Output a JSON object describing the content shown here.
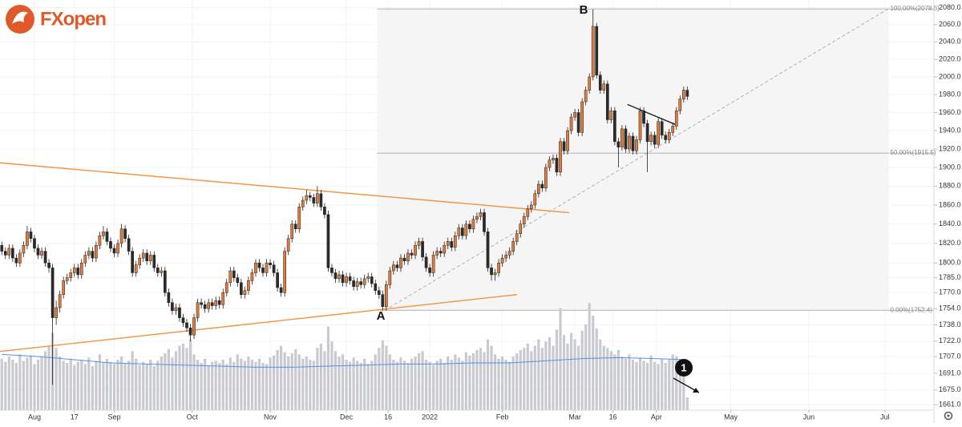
{
  "chart_data": {
    "type": "candlestick",
    "logo": "FXopen",
    "log_scale": true,
    "grid": true,
    "up_color": "#e07b39",
    "down_color": "#2b2b2b",
    "volume_color": "#c9cacf",
    "volume_ma_color": "#5b8def",
    "xlim": [
      -0.5,
      257
    ],
    "ylim": [
      1656,
      2089
    ],
    "volume_lim": [
      0,
      100
    ],
    "xticks": [
      {
        "value": 9,
        "label": "Aug"
      },
      {
        "value": 20,
        "label": "17"
      },
      {
        "value": 31,
        "label": "Sep"
      },
      {
        "value": 52.5,
        "label": "Oct"
      },
      {
        "value": 74,
        "label": "Nov"
      },
      {
        "value": 95,
        "label": "Dec"
      },
      {
        "value": 106.5,
        "label": "16"
      },
      {
        "value": 118,
        "label": "2022"
      },
      {
        "value": 138,
        "label": "Feb"
      },
      {
        "value": 158,
        "label": "Mar"
      },
      {
        "value": 168.5,
        "label": "16"
      },
      {
        "value": 180.5,
        "label": "Apr"
      },
      {
        "value": 201,
        "label": "May"
      },
      {
        "value": 222.5,
        "label": "Jun"
      },
      {
        "value": 243.5,
        "label": "Jul"
      }
    ],
    "yticks": [
      {
        "value": 1661,
        "label": "1661.0"
      },
      {
        "value": 1675,
        "label": "1675.0"
      },
      {
        "value": 1691,
        "label": "1691.0"
      },
      {
        "value": 1707,
        "label": "1707.0"
      },
      {
        "value": 1722,
        "label": "1722.0"
      },
      {
        "value": 1738,
        "label": "1738.0"
      },
      {
        "value": 1754,
        "label": "1754.0"
      },
      {
        "value": 1770,
        "label": "1770.0"
      },
      {
        "value": 1785,
        "label": "1785.0"
      },
      {
        "value": 1800,
        "label": "1800.0"
      },
      {
        "value": 1820,
        "label": "1820.0"
      },
      {
        "value": 1840,
        "label": "1840.0"
      },
      {
        "value": 1860,
        "label": "1860.0"
      },
      {
        "value": 1880,
        "label": "1880.0"
      },
      {
        "value": 1900,
        "label": "1900.0"
      },
      {
        "value": 1920,
        "label": "1920.0"
      },
      {
        "value": 1940,
        "label": "1940.0"
      },
      {
        "value": 1960,
        "label": "1960.0"
      },
      {
        "value": 1980,
        "label": "1980.0"
      },
      {
        "value": 2000,
        "label": "2000.0"
      },
      {
        "value": 2020,
        "label": "2020.0"
      },
      {
        "value": 2040,
        "label": "2040.0"
      },
      {
        "value": 2060,
        "label": "2060.0"
      },
      {
        "value": 2080,
        "label": "2080.0"
      }
    ],
    "x": [
      0,
      1,
      2,
      3,
      4,
      5,
      6,
      7,
      8,
      9,
      10,
      11,
      12,
      13,
      14,
      15,
      16,
      17,
      18,
      19,
      20,
      21,
      22,
      23,
      24,
      25,
      26,
      27,
      28,
      29,
      30,
      31,
      32,
      33,
      34,
      35,
      36,
      37,
      38,
      39,
      40,
      41,
      42,
      43,
      44,
      45,
      46,
      47,
      48,
      49,
      50,
      51,
      52,
      53,
      54,
      55,
      56,
      57,
      58,
      59,
      60,
      61,
      62,
      63,
      64,
      65,
      66,
      67,
      68,
      69,
      70,
      71,
      72,
      73,
      74,
      75,
      76,
      77,
      78,
      79,
      80,
      81,
      82,
      83,
      84,
      85,
      86,
      87,
      88,
      89,
      90,
      91,
      92,
      93,
      94,
      95,
      96,
      97,
      98,
      99,
      100,
      101,
      102,
      103,
      104,
      105,
      106,
      107,
      108,
      109,
      110,
      111,
      112,
      113,
      114,
      115,
      116,
      117,
      118,
      119,
      120,
      121,
      122,
      123,
      124,
      125,
      126,
      127,
      128,
      129,
      130,
      131,
      132,
      133,
      134,
      135,
      136,
      137,
      138,
      139,
      140,
      141,
      142,
      143,
      144,
      145,
      146,
      147,
      148,
      149,
      150,
      151,
      152,
      153,
      154,
      155,
      156,
      157,
      158,
      159,
      160,
      161,
      162,
      163,
      164,
      165,
      166,
      167,
      168,
      169,
      170,
      171,
      172,
      173,
      174,
      175,
      176,
      177,
      178,
      179,
      180,
      181,
      182,
      183,
      184,
      185,
      186,
      187,
      188,
      189
    ],
    "open": [
      1818,
      1812,
      1808,
      1815,
      1805,
      1800,
      1810,
      1818,
      1832,
      1825,
      1815,
      1808,
      1812,
      1800,
      1795,
      1745,
      1755,
      1768,
      1782,
      1785,
      1790,
      1795,
      1788,
      1800,
      1808,
      1812,
      1805,
      1818,
      1828,
      1832,
      1822,
      1815,
      1810,
      1820,
      1835,
      1825,
      1812,
      1790,
      1798,
      1805,
      1810,
      1802,
      1808,
      1795,
      1790,
      1792,
      1770,
      1760,
      1752,
      1755,
      1745,
      1740,
      1735,
      1728,
      1745,
      1760,
      1758,
      1754,
      1760,
      1757,
      1762,
      1758,
      1770,
      1780,
      1792,
      1785,
      1780,
      1768,
      1772,
      1782,
      1790,
      1800,
      1795,
      1790,
      1800,
      1798,
      1790,
      1775,
      1770,
      1812,
      1825,
      1840,
      1835,
      1858,
      1865,
      1870,
      1868,
      1862,
      1872,
      1858,
      1850,
      1795,
      1790,
      1784,
      1788,
      1780,
      1786,
      1782,
      1776,
      1781,
      1778,
      1784,
      1786,
      1779,
      1772,
      1768,
      1756,
      1778,
      1792,
      1798,
      1795,
      1805,
      1802,
      1810,
      1808,
      1818,
      1822,
      1806,
      1795,
      1790,
      1808,
      1812,
      1810,
      1818,
      1822,
      1816,
      1828,
      1836,
      1828,
      1840,
      1835,
      1845,
      1848,
      1852,
      1832,
      1795,
      1788,
      1790,
      1800,
      1805,
      1808,
      1812,
      1822,
      1830,
      1840,
      1848,
      1856,
      1860,
      1872,
      1882,
      1878,
      1900,
      1908,
      1910,
      1895,
      1928,
      1918,
      1940,
      1955,
      1960,
      1938,
      1972,
      1985,
      2000,
      2058,
      2002,
      1985,
      1992,
      1952,
      1962,
      1928,
      1922,
      1942,
      1920,
      1934,
      1918,
      1930,
      1962,
      1948,
      1928,
      1935,
      1925,
      1950,
      1935,
      1930,
      1938,
      1945,
      1962,
      1975,
      1985
    ],
    "high": [
      1822,
      1816,
      1819,
      1819,
      1809,
      1814,
      1822,
      1838,
      1836,
      1829,
      1819,
      1816,
      1816,
      1804,
      1799,
      1762,
      1772,
      1786,
      1789,
      1794,
      1799,
      1799,
      1804,
      1812,
      1816,
      1816,
      1822,
      1832,
      1838,
      1836,
      1826,
      1819,
      1824,
      1840,
      1839,
      1829,
      1816,
      1802,
      1809,
      1814,
      1814,
      1812,
      1812,
      1799,
      1796,
      1796,
      1774,
      1764,
      1759,
      1759,
      1749,
      1744,
      1739,
      1749,
      1764,
      1764,
      1762,
      1764,
      1764,
      1766,
      1766,
      1774,
      1784,
      1796,
      1796,
      1789,
      1784,
      1776,
      1786,
      1794,
      1804,
      1804,
      1799,
      1804,
      1804,
      1802,
      1794,
      1779,
      1816,
      1829,
      1844,
      1844,
      1862,
      1869,
      1876,
      1874,
      1872,
      1880,
      1876,
      1862,
      1854,
      1799,
      1794,
      1792,
      1792,
      1790,
      1790,
      1786,
      1785,
      1785,
      1788,
      1790,
      1790,
      1783,
      1776,
      1772,
      1782,
      1796,
      1802,
      1802,
      1809,
      1809,
      1814,
      1814,
      1822,
      1826,
      1826,
      1810,
      1799,
      1812,
      1816,
      1816,
      1822,
      1826,
      1826,
      1832,
      1840,
      1840,
      1844,
      1844,
      1849,
      1852,
      1856,
      1856,
      1836,
      1799,
      1794,
      1804,
      1809,
      1812,
      1816,
      1826,
      1834,
      1844,
      1852,
      1860,
      1864,
      1876,
      1886,
      1886,
      1904,
      1912,
      1914,
      1914,
      1932,
      1932,
      1944,
      1959,
      1964,
      1964,
      1976,
      1989,
      2004,
      2078,
      2062,
      2006,
      1996,
      1996,
      1966,
      1966,
      1932,
      1946,
      1946,
      1938,
      1938,
      1934,
      1966,
      1966,
      1952,
      1939,
      1939,
      1954,
      1954,
      1939,
      1942,
      1949,
      1966,
      1979,
      1989,
      1989
    ],
    "low": [
      1808,
      1804,
      1804,
      1801,
      1796,
      1796,
      1806,
      1814,
      1821,
      1811,
      1804,
      1804,
      1796,
      1790,
      1680,
      1738,
      1750,
      1764,
      1778,
      1781,
      1786,
      1784,
      1784,
      1796,
      1804,
      1801,
      1801,
      1814,
      1824,
      1818,
      1811,
      1806,
      1806,
      1816,
      1821,
      1808,
      1786,
      1786,
      1794,
      1801,
      1798,
      1798,
      1791,
      1786,
      1786,
      1766,
      1756,
      1748,
      1748,
      1741,
      1736,
      1731,
      1722,
      1724,
      1741,
      1754,
      1750,
      1750,
      1753,
      1753,
      1754,
      1754,
      1766,
      1776,
      1781,
      1776,
      1764,
      1764,
      1768,
      1778,
      1786,
      1791,
      1786,
      1786,
      1794,
      1786,
      1771,
      1766,
      1766,
      1808,
      1821,
      1831,
      1831,
      1854,
      1861,
      1864,
      1858,
      1858,
      1854,
      1846,
      1791,
      1786,
      1780,
      1780,
      1776,
      1776,
      1778,
      1772,
      1772,
      1774,
      1774,
      1780,
      1775,
      1768,
      1764,
      1752,
      1752,
      1774,
      1788,
      1791,
      1791,
      1798,
      1798,
      1804,
      1804,
      1814,
      1802,
      1791,
      1786,
      1786,
      1804,
      1806,
      1806,
      1814,
      1812,
      1812,
      1824,
      1824,
      1824,
      1831,
      1831,
      1841,
      1844,
      1828,
      1791,
      1782,
      1782,
      1786,
      1796,
      1801,
      1804,
      1808,
      1818,
      1826,
      1836,
      1844,
      1852,
      1856,
      1868,
      1874,
      1874,
      1896,
      1904,
      1891,
      1891,
      1914,
      1914,
      1936,
      1951,
      1934,
      1934,
      1968,
      1981,
      1996,
      1998,
      1981,
      1981,
      1948,
      1948,
      1924,
      1900,
      1918,
      1916,
      1916,
      1914,
      1914,
      1926,
      1944,
      1895,
      1924,
      1921,
      1921,
      1931,
      1926,
      1926,
      1934,
      1941,
      1958,
      1971,
      1974
    ],
    "close": [
      1812,
      1808,
      1815,
      1805,
      1800,
      1810,
      1818,
      1832,
      1825,
      1815,
      1808,
      1812,
      1800,
      1795,
      1745,
      1755,
      1768,
      1782,
      1785,
      1790,
      1795,
      1788,
      1800,
      1808,
      1812,
      1805,
      1818,
      1828,
      1832,
      1822,
      1815,
      1810,
      1820,
      1835,
      1825,
      1812,
      1790,
      1798,
      1805,
      1810,
      1802,
      1808,
      1795,
      1790,
      1792,
      1770,
      1760,
      1752,
      1755,
      1745,
      1740,
      1735,
      1728,
      1745,
      1760,
      1758,
      1754,
      1760,
      1757,
      1762,
      1758,
      1770,
      1780,
      1792,
      1785,
      1780,
      1768,
      1772,
      1782,
      1790,
      1800,
      1795,
      1790,
      1800,
      1798,
      1790,
      1775,
      1770,
      1812,
      1825,
      1840,
      1835,
      1858,
      1865,
      1870,
      1868,
      1862,
      1872,
      1858,
      1850,
      1795,
      1790,
      1784,
      1788,
      1780,
      1786,
      1782,
      1776,
      1781,
      1778,
      1784,
      1786,
      1779,
      1772,
      1768,
      1756,
      1778,
      1792,
      1798,
      1795,
      1805,
      1802,
      1810,
      1808,
      1818,
      1822,
      1806,
      1795,
      1790,
      1808,
      1812,
      1810,
      1818,
      1822,
      1816,
      1828,
      1836,
      1828,
      1840,
      1835,
      1845,
      1848,
      1852,
      1832,
      1795,
      1788,
      1790,
      1800,
      1805,
      1808,
      1812,
      1822,
      1830,
      1840,
      1848,
      1856,
      1860,
      1872,
      1882,
      1878,
      1900,
      1908,
      1910,
      1895,
      1928,
      1918,
      1940,
      1955,
      1960,
      1938,
      1972,
      1985,
      2000,
      2058,
      2002,
      1985,
      1992,
      1952,
      1962,
      1928,
      1922,
      1942,
      1920,
      1934,
      1918,
      1930,
      1962,
      1948,
      1928,
      1935,
      1925,
      1950,
      1935,
      1930,
      1938,
      1945,
      1962,
      1975,
      1985,
      1978
    ],
    "volume": [
      48,
      45,
      50,
      47,
      44,
      52,
      46,
      49,
      51,
      43,
      47,
      50,
      55,
      60,
      72,
      58,
      50,
      46,
      44,
      48,
      42,
      45,
      47,
      43,
      49,
      41,
      46,
      52,
      44,
      48,
      45,
      43,
      47,
      50,
      44,
      46,
      55,
      48,
      42,
      45,
      43,
      47,
      41,
      46,
      50,
      53,
      57,
      49,
      55,
      60,
      62,
      58,
      66,
      52,
      47,
      44,
      48,
      42,
      45,
      46,
      44,
      47,
      43,
      49,
      45,
      52,
      48,
      46,
      50,
      47,
      45,
      48,
      44,
      43,
      49,
      51,
      56,
      60,
      54,
      50,
      53,
      57,
      52,
      48,
      50,
      47,
      46,
      58,
      62,
      55,
      78,
      64,
      55,
      50,
      52,
      47,
      45,
      49,
      46,
      44,
      48,
      43,
      46,
      52,
      58,
      65,
      60,
      52,
      47,
      45,
      49,
      46,
      44,
      48,
      50,
      53,
      55,
      47,
      45,
      42,
      46,
      48,
      44,
      50,
      47,
      52,
      49,
      46,
      54,
      51,
      53,
      56,
      58,
      54,
      66,
      60,
      52,
      48,
      50,
      47,
      45,
      50,
      53,
      56,
      58,
      62,
      55,
      60,
      66,
      58,
      64,
      68,
      60,
      75,
      95,
      70,
      62,
      72,
      66,
      60,
      74,
      80,
      100,
      88,
      76,
      66,
      60,
      58,
      55,
      52,
      56,
      50,
      48,
      52,
      47,
      45,
      49,
      46,
      44,
      51,
      45,
      43,
      48,
      44,
      47,
      52,
      50,
      45,
      40,
      12
    ],
    "volume_ma": {
      "x": [
        0,
        10,
        20,
        30,
        40,
        50,
        60,
        70,
        80,
        90,
        100,
        110,
        120,
        130,
        140,
        150,
        160,
        170,
        180,
        189
      ],
      "values": [
        52,
        50,
        47,
        44,
        43,
        42,
        41,
        40,
        40,
        41,
        42,
        43,
        43,
        44,
        44,
        46,
        48,
        49,
        48,
        47
      ]
    },
    "fib_x": [
      103.5,
      244.5
    ],
    "fib_levels": [
      {
        "value": 2078.5,
        "label": "100.00%(2078.5)"
      },
      {
        "value": 1915.5,
        "label": "50.00%(1915.5)"
      },
      {
        "value": 1752.4,
        "label": "0.00%(1752.4)"
      }
    ],
    "trendlines": [
      {
        "color": "#f5923e",
        "points": [
          [
            -0.5,
            1905
          ],
          [
            156.4,
            1852
          ]
        ]
      },
      {
        "color": "#f5923e",
        "points": [
          [
            -0.5,
            1712
          ],
          [
            142,
            1768
          ]
        ]
      },
      {
        "color": "#222222",
        "points": [
          [
            172.5,
            1969
          ],
          [
            186.2,
            1946
          ]
        ]
      },
      {
        "color": "#b0b0b0",
        "dashed": true,
        "points": [
          [
            105.6,
            1752.4
          ],
          [
            244.4,
            2078.5
          ]
        ]
      }
    ],
    "annotations": [
      "A",
      "B",
      "1"
    ]
  }
}
